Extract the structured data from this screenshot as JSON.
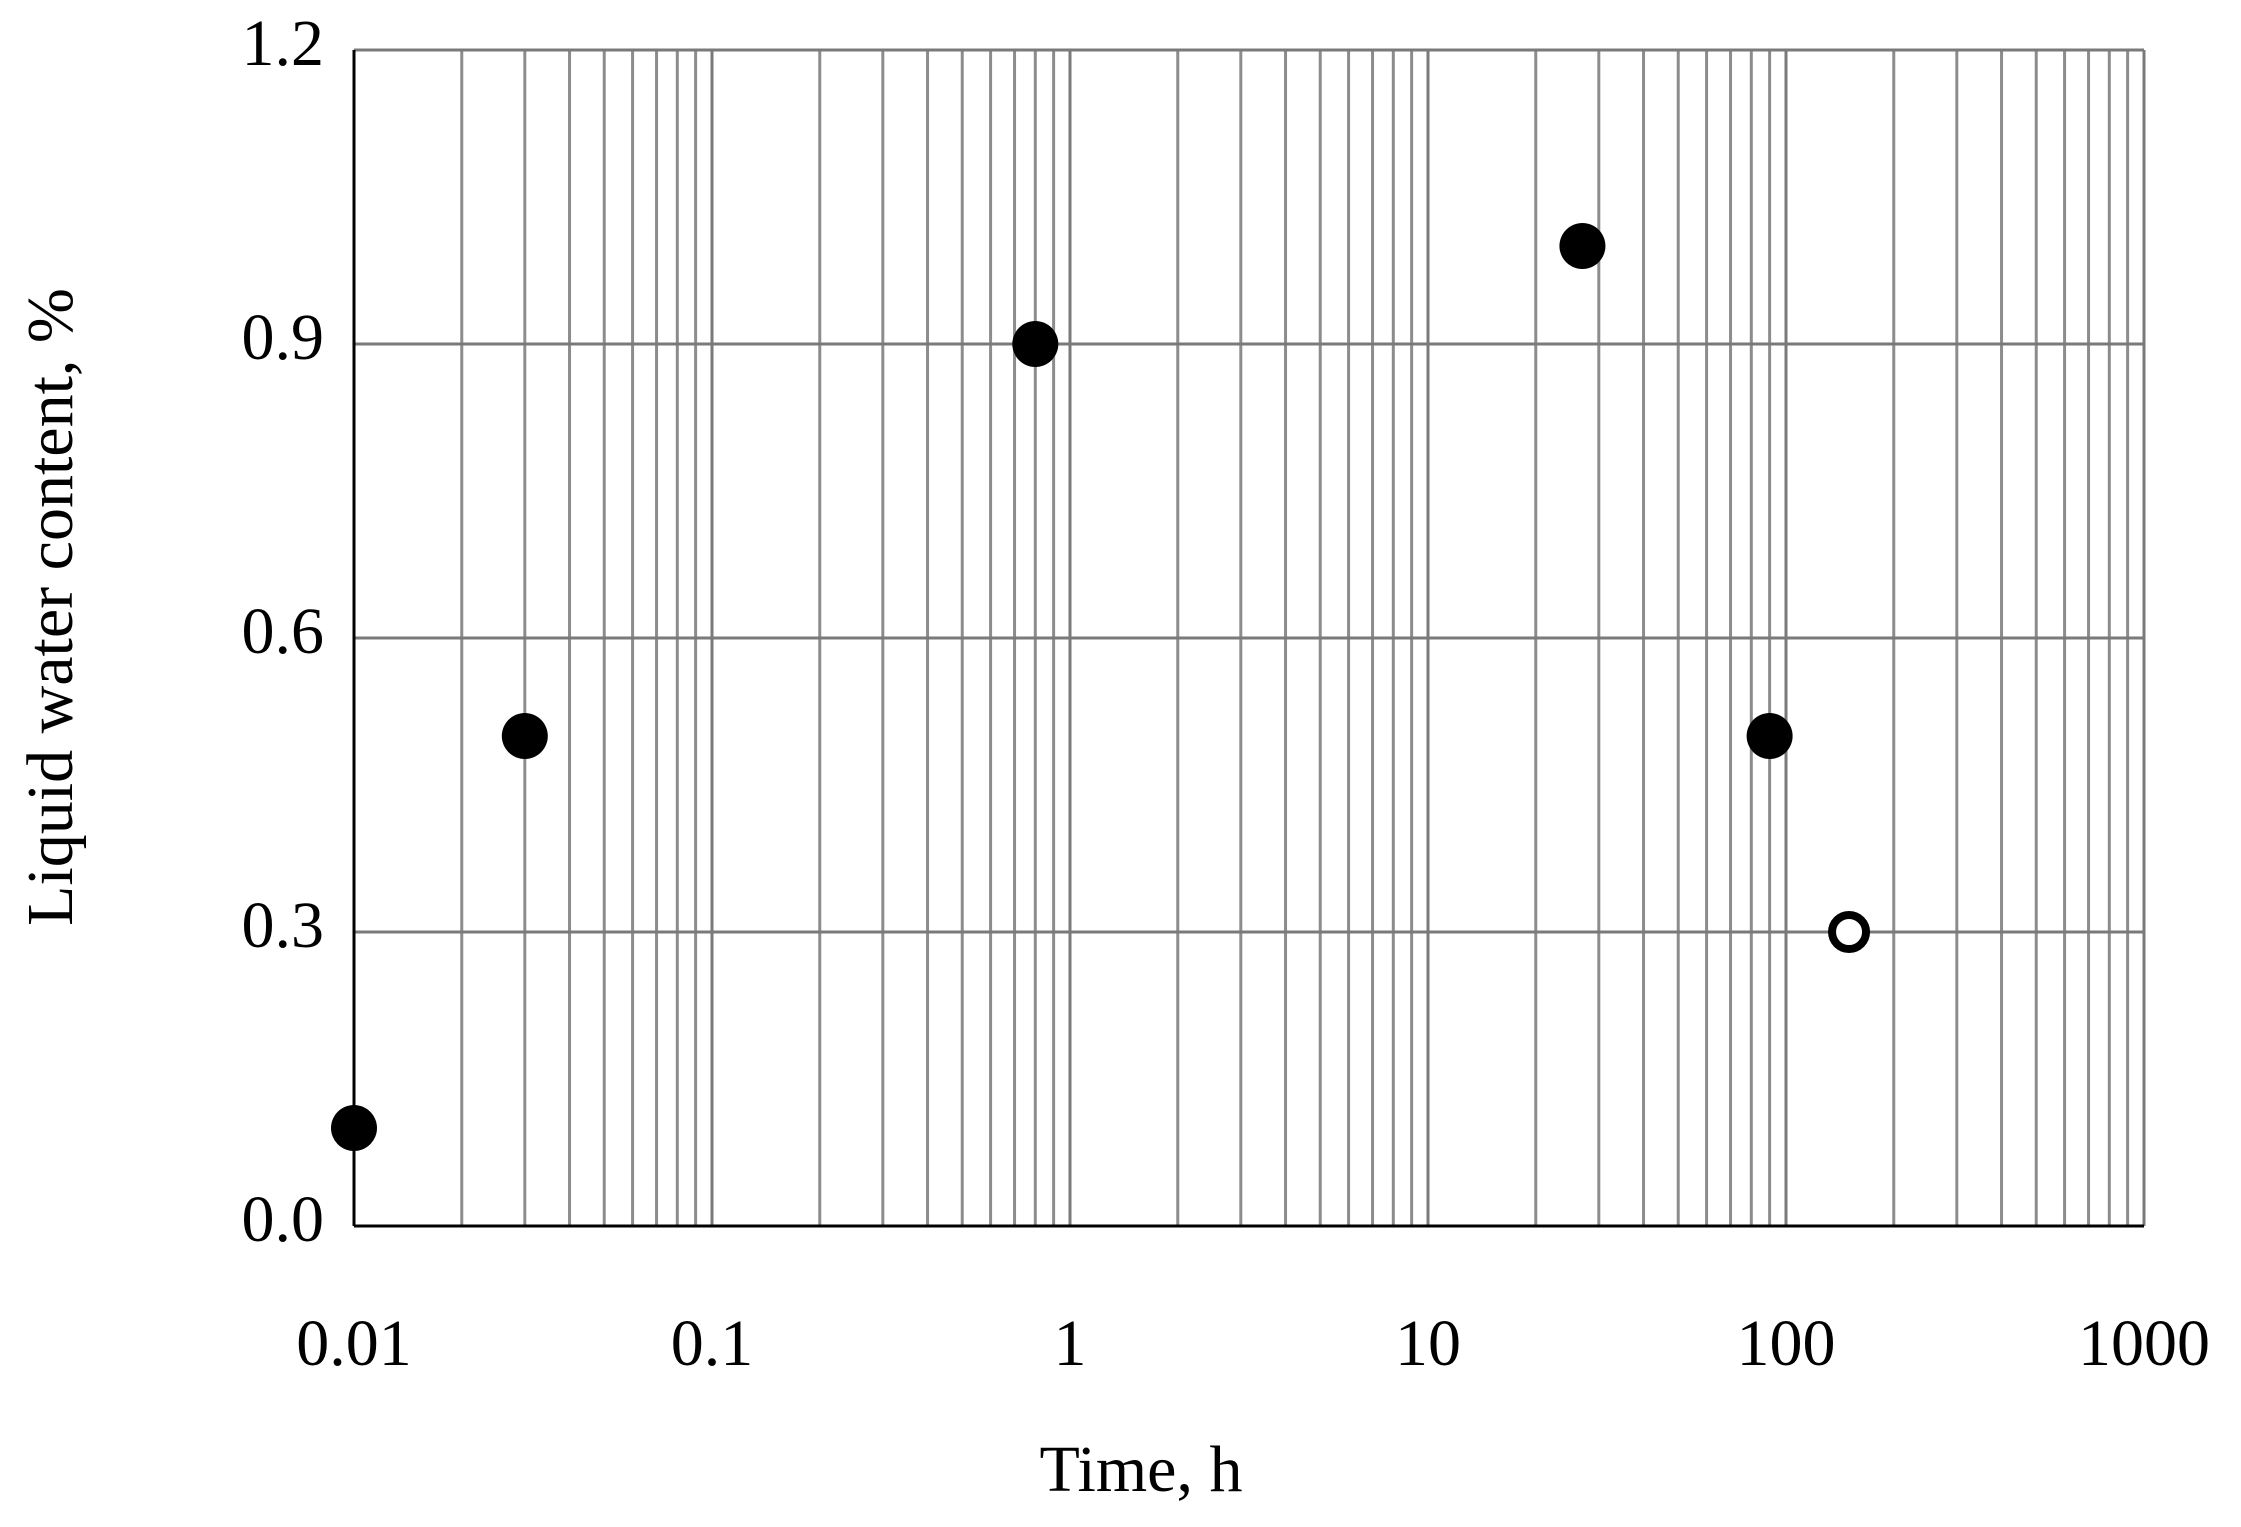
{
  "chart_data": {
    "type": "scatter",
    "x_label": "Time, h",
    "y_label": "Liquid water content, %",
    "x_log": true,
    "xlim": [
      0.01,
      1000
    ],
    "xticks": [
      0.01,
      0.1,
      1,
      10,
      100,
      1000
    ],
    "ylim": [
      0,
      1.2
    ],
    "yticks": [
      {
        "value": 0,
        "label": "0.0"
      },
      0.3,
      0.6,
      0.9,
      1.2
    ],
    "grid": true,
    "series": [
      {
        "color": "#000000",
        "marker": "filled",
        "x": [
          0.01,
          0.03,
          0.8,
          27,
          90
        ],
        "values": [
          0.1,
          0.5,
          0.9,
          1.0,
          0.5
        ]
      },
      {
        "color": "#000000",
        "marker": "open",
        "x": [
          150
        ],
        "values": [
          0.3
        ]
      }
    ]
  }
}
